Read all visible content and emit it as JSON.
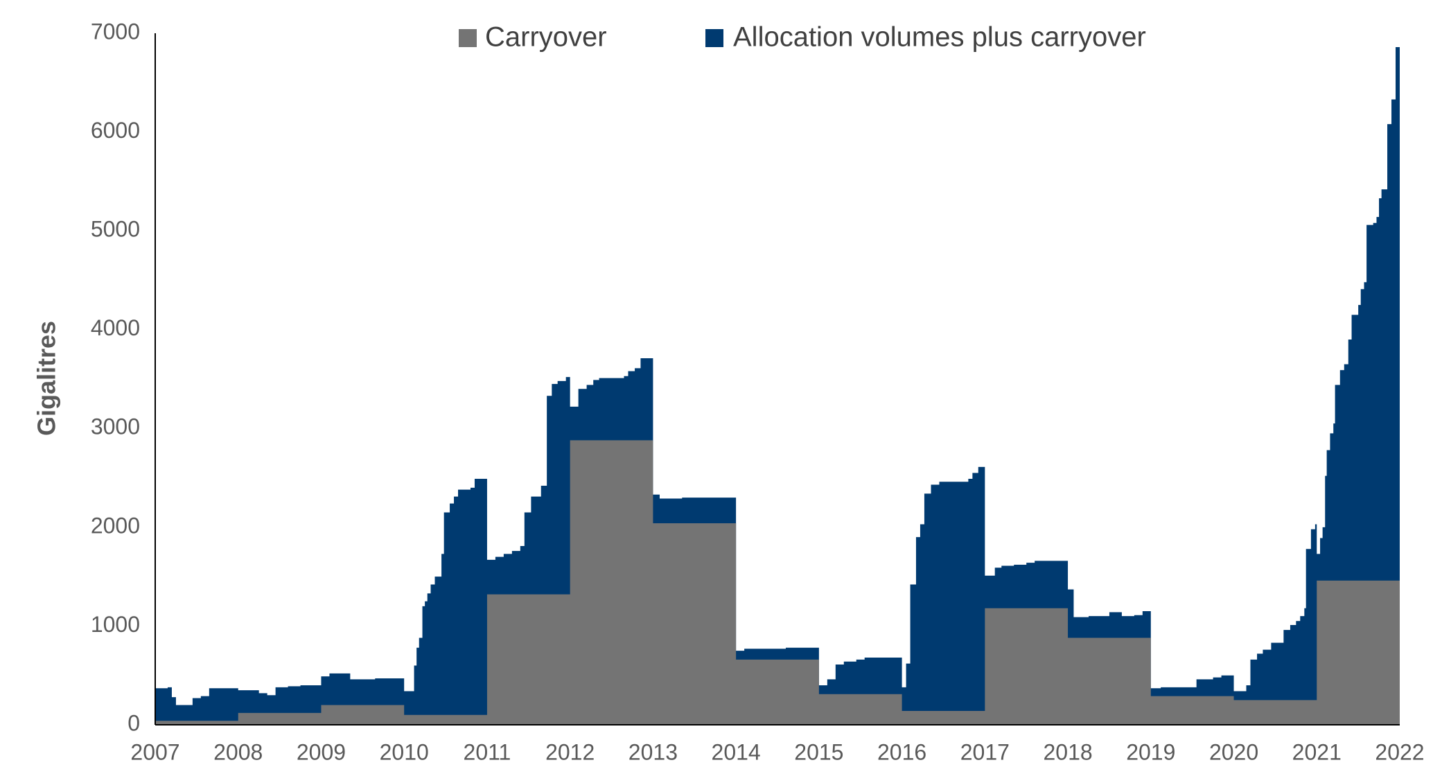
{
  "chart_data": {
    "type": "area",
    "title": "",
    "xlabel": "",
    "ylabel": "Gigalitres",
    "xlim": [
      2007,
      2022
    ],
    "ylim": [
      0,
      7000
    ],
    "yticks": [
      0,
      1000,
      2000,
      3000,
      4000,
      5000,
      6000,
      7000
    ],
    "xticks": [
      2007,
      2008,
      2009,
      2010,
      2011,
      2012,
      2013,
      2014,
      2015,
      2016,
      2017,
      2018,
      2019,
      2020,
      2021,
      2022
    ],
    "grid": false,
    "legend": "top-center",
    "series": [
      {
        "name": "Carryover",
        "color": "#747474",
        "step": true,
        "points": [
          [
            2007.0,
            40
          ],
          [
            2008.0,
            120
          ],
          [
            2009.0,
            200
          ],
          [
            2010.0,
            100
          ],
          [
            2011.0,
            1320
          ],
          [
            2012.0,
            2880
          ],
          [
            2013.0,
            2040
          ],
          [
            2014.0,
            660
          ],
          [
            2015.0,
            310
          ],
          [
            2016.0,
            140
          ],
          [
            2017.0,
            1180
          ],
          [
            2018.0,
            880
          ],
          [
            2019.0,
            290
          ],
          [
            2020.0,
            250
          ],
          [
            2021.0,
            1460
          ],
          [
            2022.0,
            1460
          ]
        ]
      },
      {
        "name": "Allocation volumes plus carryover",
        "color": "#003A70",
        "step": true,
        "points": [
          [
            2007.0,
            370
          ],
          [
            2007.15,
            380
          ],
          [
            2007.2,
            280
          ],
          [
            2007.25,
            200
          ],
          [
            2007.45,
            270
          ],
          [
            2007.55,
            290
          ],
          [
            2007.65,
            370
          ],
          [
            2008.0,
            350
          ],
          [
            2008.25,
            320
          ],
          [
            2008.35,
            300
          ],
          [
            2008.45,
            380
          ],
          [
            2008.6,
            390
          ],
          [
            2008.75,
            400
          ],
          [
            2009.0,
            490
          ],
          [
            2009.1,
            520
          ],
          [
            2009.35,
            460
          ],
          [
            2009.65,
            470
          ],
          [
            2010.0,
            340
          ],
          [
            2010.12,
            600
          ],
          [
            2010.15,
            780
          ],
          [
            2010.18,
            880
          ],
          [
            2010.22,
            1200
          ],
          [
            2010.25,
            1250
          ],
          [
            2010.28,
            1330
          ],
          [
            2010.32,
            1420
          ],
          [
            2010.37,
            1500
          ],
          [
            2010.45,
            1730
          ],
          [
            2010.48,
            2150
          ],
          [
            2010.55,
            2240
          ],
          [
            2010.6,
            2310
          ],
          [
            2010.65,
            2380
          ],
          [
            2010.8,
            2400
          ],
          [
            2010.85,
            2490
          ],
          [
            2011.0,
            1670
          ],
          [
            2011.1,
            1700
          ],
          [
            2011.2,
            1730
          ],
          [
            2011.3,
            1760
          ],
          [
            2011.4,
            1810
          ],
          [
            2011.45,
            2150
          ],
          [
            2011.53,
            2310
          ],
          [
            2011.65,
            2420
          ],
          [
            2011.72,
            3330
          ],
          [
            2011.78,
            3450
          ],
          [
            2011.85,
            3480
          ],
          [
            2011.95,
            3520
          ],
          [
            2012.0,
            3220
          ],
          [
            2012.1,
            3400
          ],
          [
            2012.2,
            3440
          ],
          [
            2012.28,
            3490
          ],
          [
            2012.35,
            3510
          ],
          [
            2012.65,
            3530
          ],
          [
            2012.7,
            3580
          ],
          [
            2012.78,
            3610
          ],
          [
            2012.85,
            3710
          ],
          [
            2013.0,
            2330
          ],
          [
            2013.08,
            2290
          ],
          [
            2013.35,
            2300
          ],
          [
            2014.0,
            750
          ],
          [
            2014.1,
            770
          ],
          [
            2014.6,
            780
          ],
          [
            2015.0,
            400
          ],
          [
            2015.1,
            460
          ],
          [
            2015.2,
            610
          ],
          [
            2015.3,
            640
          ],
          [
            2015.45,
            660
          ],
          [
            2015.55,
            680
          ],
          [
            2016.0,
            380
          ],
          [
            2016.05,
            620
          ],
          [
            2016.1,
            1420
          ],
          [
            2016.17,
            1900
          ],
          [
            2016.22,
            2030
          ],
          [
            2016.27,
            2340
          ],
          [
            2016.35,
            2430
          ],
          [
            2016.45,
            2460
          ],
          [
            2016.8,
            2490
          ],
          [
            2016.85,
            2550
          ],
          [
            2016.92,
            2610
          ],
          [
            2017.0,
            1510
          ],
          [
            2017.12,
            1590
          ],
          [
            2017.2,
            1610
          ],
          [
            2017.35,
            1620
          ],
          [
            2017.5,
            1640
          ],
          [
            2017.6,
            1660
          ],
          [
            2018.0,
            1370
          ],
          [
            2018.07,
            1090
          ],
          [
            2018.25,
            1100
          ],
          [
            2018.5,
            1140
          ],
          [
            2018.65,
            1100
          ],
          [
            2018.8,
            1110
          ],
          [
            2018.9,
            1150
          ],
          [
            2019.0,
            370
          ],
          [
            2019.12,
            380
          ],
          [
            2019.55,
            460
          ],
          [
            2019.75,
            480
          ],
          [
            2019.85,
            500
          ],
          [
            2020.0,
            340
          ],
          [
            2020.15,
            400
          ],
          [
            2020.2,
            660
          ],
          [
            2020.28,
            720
          ],
          [
            2020.35,
            760
          ],
          [
            2020.45,
            830
          ],
          [
            2020.6,
            960
          ],
          [
            2020.68,
            1010
          ],
          [
            2020.75,
            1050
          ],
          [
            2020.8,
            1100
          ],
          [
            2020.85,
            1180
          ],
          [
            2020.87,
            1780
          ],
          [
            2020.93,
            1980
          ],
          [
            2020.98,
            2030
          ],
          [
            2021.0,
            1730
          ],
          [
            2021.04,
            1890
          ],
          [
            2021.07,
            2000
          ],
          [
            2021.1,
            2520
          ],
          [
            2021.12,
            2780
          ],
          [
            2021.16,
            2950
          ],
          [
            2021.2,
            3050
          ],
          [
            2021.22,
            3440
          ],
          [
            2021.28,
            3590
          ],
          [
            2021.33,
            3650
          ],
          [
            2021.38,
            3900
          ],
          [
            2021.42,
            4150
          ],
          [
            2021.5,
            4250
          ],
          [
            2021.53,
            4410
          ],
          [
            2021.57,
            4480
          ],
          [
            2021.6,
            5060
          ],
          [
            2021.68,
            5080
          ],
          [
            2021.72,
            5140
          ],
          [
            2021.75,
            5330
          ],
          [
            2021.78,
            5420
          ],
          [
            2021.85,
            6080
          ],
          [
            2021.9,
            6330
          ],
          [
            2021.95,
            6860
          ],
          [
            2022.0,
            6860
          ]
        ]
      }
    ]
  }
}
